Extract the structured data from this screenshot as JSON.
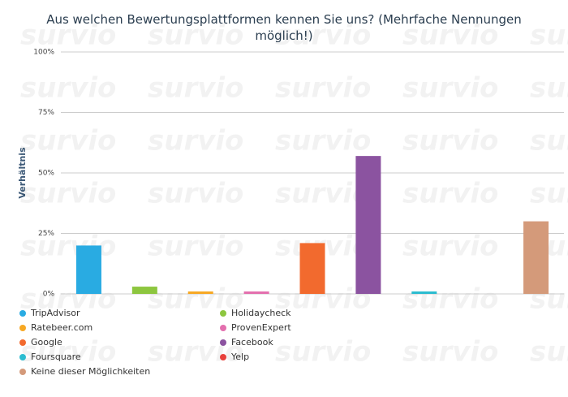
{
  "chart_data": {
    "type": "bar",
    "title": "Aus welchen Bewertungsplattformen kennen Sie uns? (Mehrfache Nennungen möglich!)",
    "y_label": "Verhältnis",
    "watermark": "survio",
    "categories": [
      "TripAdvisor",
      "Holidaycheck",
      "Ratebeer.com",
      "ProvenExpert",
      "Google",
      "Facebook",
      "Foursquare",
      "Yelp",
      "Keine dieser Möglichkeiten"
    ],
    "values": [
      20,
      3,
      1,
      1,
      21,
      57,
      1,
      0,
      30
    ],
    "colors": [
      "#29abe2",
      "#8dc63f",
      "#f7a823",
      "#e36fae",
      "#f26a2e",
      "#8b53a0",
      "#2bbcd0",
      "#e8403b",
      "#d49a7a"
    ],
    "ylim": [
      0,
      100
    ],
    "yticks": [
      {
        "value": 0,
        "label": "0%"
      },
      {
        "value": 25,
        "label": "25%"
      },
      {
        "value": 50,
        "label": "50%"
      },
      {
        "value": 75,
        "label": "75%"
      },
      {
        "value": 100,
        "label": "100%"
      }
    ],
    "grid": true
  }
}
